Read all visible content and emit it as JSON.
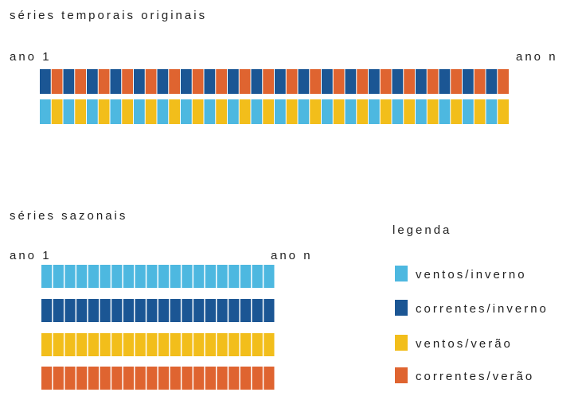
{
  "original": {
    "title": "séries temporais originais",
    "start": "ano 1",
    "end": "ano n"
  },
  "seasonal": {
    "title": "séries sazonais",
    "start": "ano 1",
    "end": "ano n"
  },
  "legend": {
    "title": "legenda",
    "items": [
      {
        "label": "ventos/inverno",
        "color": "#4db8e0"
      },
      {
        "label": "correntes/inverno",
        "color": "#1b5694"
      },
      {
        "label": "ventos/verão",
        "color": "#f2be1b"
      },
      {
        "label": "correntes/verão",
        "color": "#df6430"
      }
    ]
  }
}
